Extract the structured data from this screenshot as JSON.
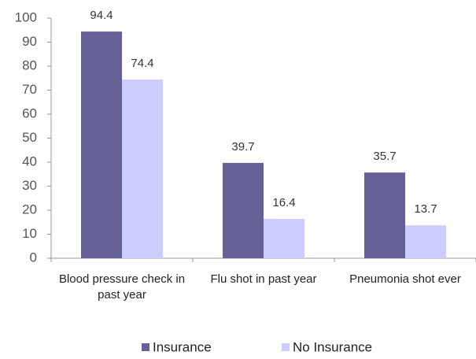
{
  "chart_data": {
    "type": "bar",
    "categories": [
      "Blood pressure check in past year",
      "Flu shot in past year",
      "Pneumonia shot ever"
    ],
    "series": [
      {
        "name": "Insurance",
        "color": "#656197",
        "values": [
          94.4,
          39.7,
          35.7
        ]
      },
      {
        "name": "No Insurance",
        "color": "#ccccff",
        "values": [
          74.4,
          16.4,
          13.7
        ]
      }
    ],
    "ylim": [
      0,
      100
    ],
    "yticks": [
      0,
      10,
      20,
      30,
      40,
      50,
      60,
      70,
      80,
      90,
      100
    ],
    "grid": false,
    "legend": "bottom"
  }
}
